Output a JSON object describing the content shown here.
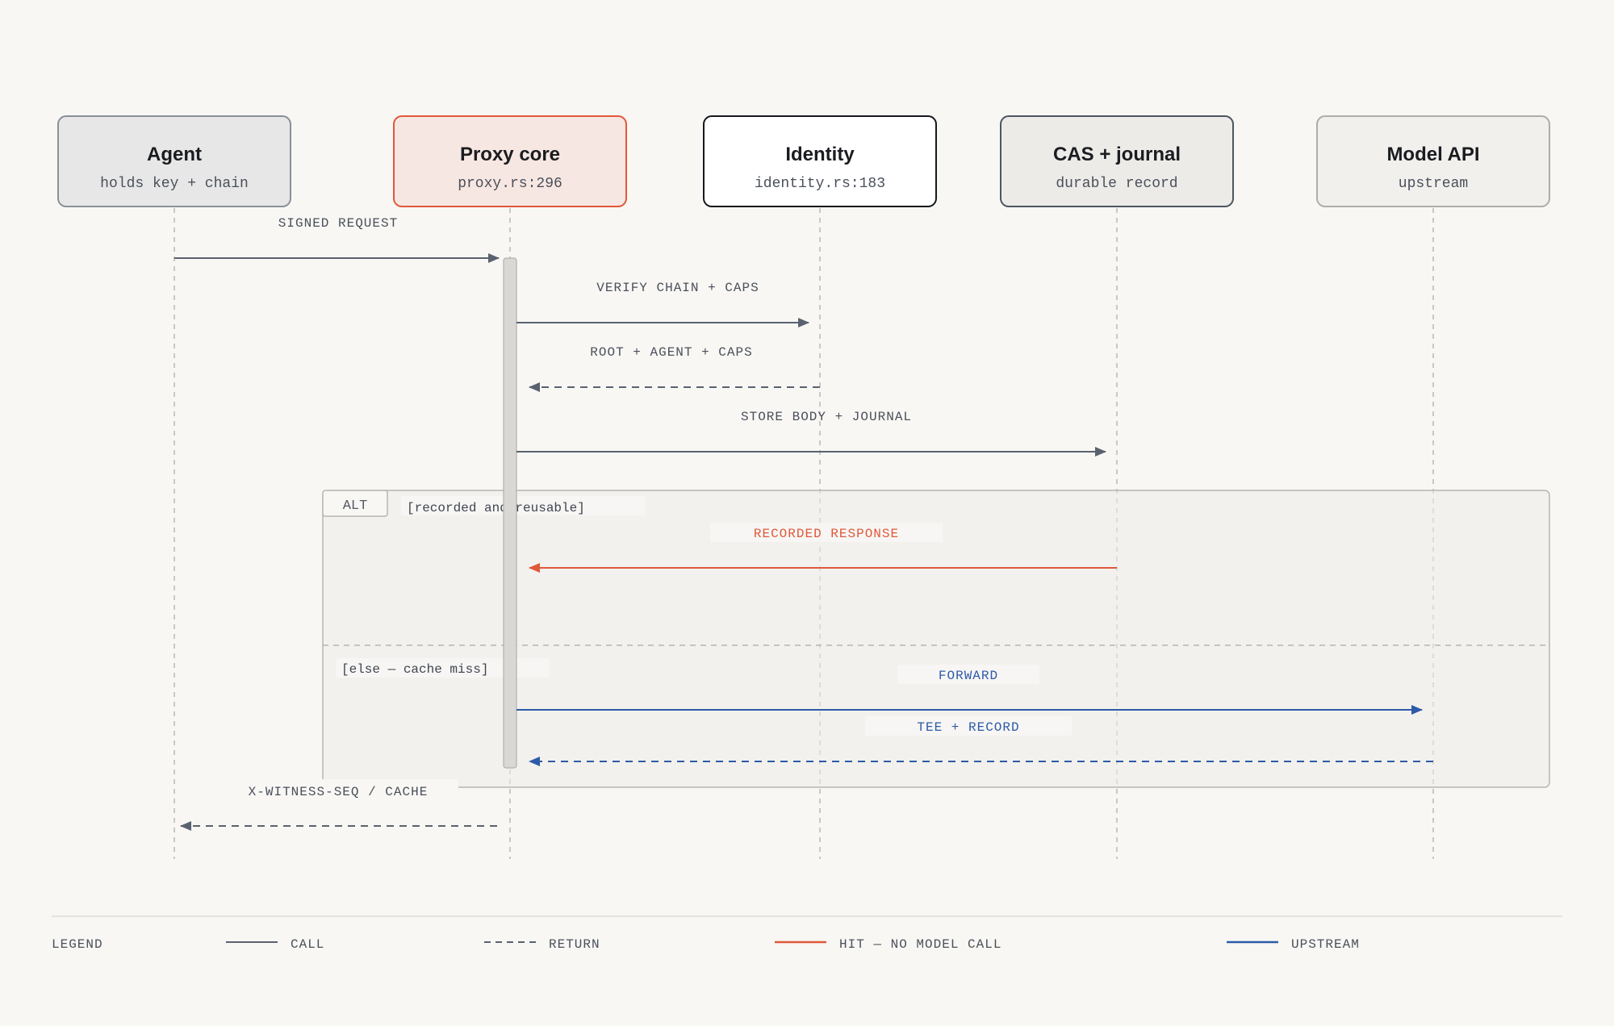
{
  "participants": [
    {
      "id": "agent",
      "title": "Agent",
      "subtitle": "holds key + chain",
      "style": "gray"
    },
    {
      "id": "proxy",
      "title": "Proxy core",
      "subtitle": "proxy.rs:296",
      "style": "accent"
    },
    {
      "id": "identity",
      "title": "Identity",
      "subtitle": "identity.rs:183",
      "style": "white"
    },
    {
      "id": "cas",
      "title": "CAS + journal",
      "subtitle": "durable record",
      "style": "graydark"
    },
    {
      "id": "model",
      "title": "Model API",
      "subtitle": "upstream",
      "style": "light"
    }
  ],
  "messages": [
    {
      "from": "agent",
      "to": "proxy",
      "label": "SIGNED REQUEST",
      "kind": "call",
      "color": "gray"
    },
    {
      "from": "proxy",
      "to": "identity",
      "label": "VERIFY CHAIN + CAPS",
      "kind": "call",
      "color": "gray"
    },
    {
      "from": "identity",
      "to": "proxy",
      "label": "ROOT + AGENT + CAPS",
      "kind": "return",
      "color": "gray"
    },
    {
      "from": "proxy",
      "to": "cas",
      "label": "STORE BODY + JOURNAL",
      "kind": "call",
      "color": "gray"
    },
    {
      "from": "cas",
      "to": "proxy",
      "label": "RECORDED RESPONSE",
      "kind": "call",
      "color": "orange"
    },
    {
      "from": "proxy",
      "to": "model",
      "label": "FORWARD",
      "kind": "call",
      "color": "blue"
    },
    {
      "from": "model",
      "to": "proxy",
      "label": "TEE + RECORD",
      "kind": "return",
      "color": "blue"
    },
    {
      "from": "proxy",
      "to": "agent",
      "label": "X-WITNESS-SEQ / CACHE",
      "kind": "return",
      "color": "gray"
    }
  ],
  "alt_fragment": {
    "tag": "ALT",
    "guard_if": "[recorded and reusable]",
    "guard_else": "[else — cache miss]"
  },
  "legend": {
    "title": "LEGEND",
    "items": [
      {
        "label": "CALL",
        "style": "solid",
        "color": "gray"
      },
      {
        "label": "RETURN",
        "style": "dashed",
        "color": "gray"
      },
      {
        "label": "HIT — NO MODEL CALL",
        "style": "solid",
        "color": "orange"
      },
      {
        "label": "UPSTREAM",
        "style": "solid",
        "color": "blue"
      }
    ]
  },
  "colors": {
    "gray": "#5a6270",
    "orange": "#e0583a",
    "blue": "#2e5aa8",
    "background": "#f8f7f4"
  }
}
